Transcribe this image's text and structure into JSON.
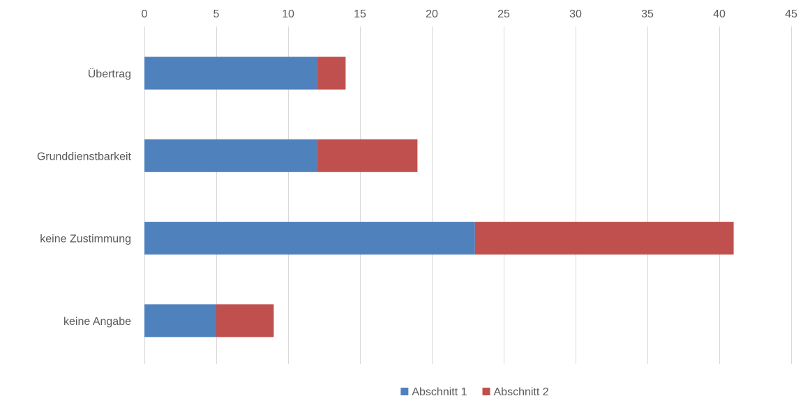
{
  "chart_data": {
    "type": "bar",
    "orientation": "horizontal",
    "stacked": true,
    "categories": [
      "Übertrag",
      "Grunddienstbarkeit",
      "keine Zustimmung",
      "keine Angabe"
    ],
    "series": [
      {
        "name": "Abschnitt 1",
        "color": "#4f81bd",
        "values": [
          12,
          12,
          23,
          5
        ]
      },
      {
        "name": "Abschnitt 2",
        "color": "#c0504d",
        "values": [
          2,
          7,
          18,
          4
        ]
      }
    ],
    "title": "",
    "xlabel": "",
    "ylabel": "",
    "xlim": [
      0,
      45
    ],
    "xticks": [
      0,
      5,
      10,
      15,
      20,
      25,
      30,
      35,
      40,
      45
    ],
    "x_axis_position": "top",
    "grid": true,
    "legend": "bottom"
  }
}
